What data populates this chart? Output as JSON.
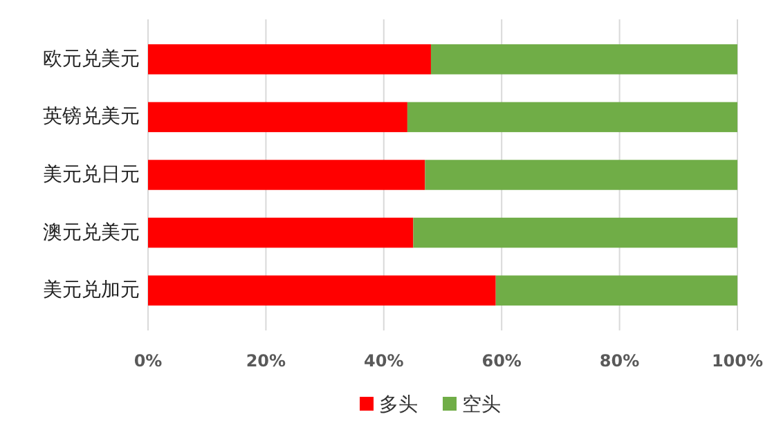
{
  "chart_data": {
    "type": "bar",
    "orientation": "horizontal",
    "stacked": true,
    "categories": [
      "欧元兑美元",
      "英镑兑美元",
      "美元兑日元",
      "澳元兑美元",
      "美元兑加元"
    ],
    "series": [
      {
        "name": "多头",
        "color": "#ff0000",
        "values": [
          48,
          44,
          47,
          45,
          59
        ]
      },
      {
        "name": "空头",
        "color": "#70ad47",
        "values": [
          52,
          56,
          53,
          55,
          41
        ]
      }
    ],
    "xlim": [
      0,
      100
    ],
    "xticks": [
      {
        "value": 0,
        "label": "0%"
      },
      {
        "value": 20,
        "label": "20%"
      },
      {
        "value": 40,
        "label": "40%"
      },
      {
        "value": 60,
        "label": "60%"
      },
      {
        "value": 80,
        "label": "80%"
      },
      {
        "value": 100,
        "label": "100%"
      }
    ],
    "grid": "x",
    "legend": "bottom"
  }
}
